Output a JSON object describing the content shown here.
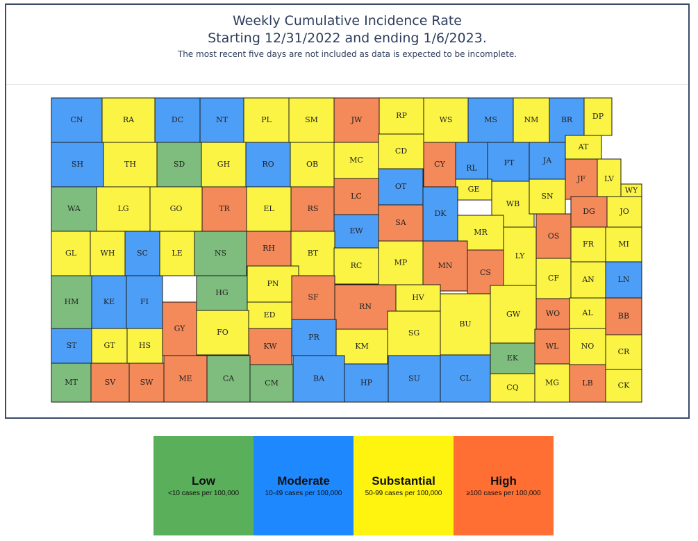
{
  "title": {
    "line1": "Weekly Cumulative Incidence Rate",
    "line2": "Starting 12/31/2022 and ending 1/6/2023.",
    "note": "The most recent five days are not included as data is expected to be incomplete."
  },
  "colors": {
    "low": "#7ebd7e",
    "moderate": "#4d9ef7",
    "substantial": "#fbf444",
    "high": "#f4895a",
    "frame": "#3a4a66"
  },
  "legend": [
    {
      "level": "low",
      "label": "Low",
      "range": "<10 cases per 100,000",
      "color": "#5aaf5a"
    },
    {
      "level": "moderate",
      "label": "Moderate",
      "range": "10-49 cases per 100,000",
      "color": "#1e88ff"
    },
    {
      "level": "substantial",
      "label": "Substantial",
      "range": "50-99 cases per 100,000",
      "color": "#fff40f"
    },
    {
      "level": "high",
      "label": "High",
      "range": "≥100 cases per 100,000",
      "color": "#ff6e33"
    }
  ],
  "counties": [
    {
      "code": "CN",
      "level": "moderate"
    },
    {
      "code": "RA",
      "level": "substantial"
    },
    {
      "code": "DC",
      "level": "moderate"
    },
    {
      "code": "NT",
      "level": "moderate"
    },
    {
      "code": "PL",
      "level": "substantial"
    },
    {
      "code": "SM",
      "level": "substantial"
    },
    {
      "code": "JW",
      "level": "high"
    },
    {
      "code": "RP",
      "level": "substantial"
    },
    {
      "code": "WS",
      "level": "substantial"
    },
    {
      "code": "MS",
      "level": "moderate"
    },
    {
      "code": "NM",
      "level": "substantial"
    },
    {
      "code": "BR",
      "level": "moderate"
    },
    {
      "code": "DP",
      "level": "substantial"
    },
    {
      "code": "SH",
      "level": "moderate"
    },
    {
      "code": "TH",
      "level": "substantial"
    },
    {
      "code": "SD",
      "level": "low"
    },
    {
      "code": "GH",
      "level": "substantial"
    },
    {
      "code": "RO",
      "level": "moderate"
    },
    {
      "code": "OB",
      "level": "substantial"
    },
    {
      "code": "MC",
      "level": "substantial"
    },
    {
      "code": "CD",
      "level": "substantial"
    },
    {
      "code": "CY",
      "level": "high"
    },
    {
      "code": "RL",
      "level": "moderate"
    },
    {
      "code": "PT",
      "level": "moderate"
    },
    {
      "code": "JA",
      "level": "moderate"
    },
    {
      "code": "AT",
      "level": "substantial"
    },
    {
      "code": "JF",
      "level": "high"
    },
    {
      "code": "LV",
      "level": "substantial"
    },
    {
      "code": "WY",
      "level": "substantial"
    },
    {
      "code": "WA",
      "level": "low"
    },
    {
      "code": "LG",
      "level": "substantial"
    },
    {
      "code": "GO",
      "level": "substantial"
    },
    {
      "code": "TR",
      "level": "high"
    },
    {
      "code": "EL",
      "level": "substantial"
    },
    {
      "code": "RS",
      "level": "high"
    },
    {
      "code": "LC",
      "level": "high"
    },
    {
      "code": "OT",
      "level": "moderate"
    },
    {
      "code": "GE",
      "level": "substantial"
    },
    {
      "code": "WB",
      "level": "substantial"
    },
    {
      "code": "SN",
      "level": "substantial"
    },
    {
      "code": "DG",
      "level": "high"
    },
    {
      "code": "JO",
      "level": "substantial"
    },
    {
      "code": "SA",
      "level": "high"
    },
    {
      "code": "DK",
      "level": "moderate"
    },
    {
      "code": "EW",
      "level": "moderate"
    },
    {
      "code": "MR",
      "level": "substantial"
    },
    {
      "code": "OS",
      "level": "high"
    },
    {
      "code": "GL",
      "level": "substantial"
    },
    {
      "code": "WH",
      "level": "substantial"
    },
    {
      "code": "SC",
      "level": "moderate"
    },
    {
      "code": "LE",
      "level": "substantial"
    },
    {
      "code": "NS",
      "level": "low"
    },
    {
      "code": "RH",
      "level": "high"
    },
    {
      "code": "BT",
      "level": "substantial"
    },
    {
      "code": "RC",
      "level": "substantial"
    },
    {
      "code": "MP",
      "level": "substantial"
    },
    {
      "code": "MN",
      "level": "high"
    },
    {
      "code": "CS",
      "level": "high"
    },
    {
      "code": "LY",
      "level": "substantial"
    },
    {
      "code": "FR",
      "level": "substantial"
    },
    {
      "code": "MI",
      "level": "substantial"
    },
    {
      "code": "HM",
      "level": "low"
    },
    {
      "code": "KE",
      "level": "moderate"
    },
    {
      "code": "FI",
      "level": "moderate"
    },
    {
      "code": "HG",
      "level": "low"
    },
    {
      "code": "PN",
      "level": "substantial"
    },
    {
      "code": "SF",
      "level": "high"
    },
    {
      "code": "RN",
      "level": "high"
    },
    {
      "code": "HV",
      "level": "substantial"
    },
    {
      "code": "BU",
      "level": "substantial"
    },
    {
      "code": "GW",
      "level": "substantial"
    },
    {
      "code": "CF",
      "level": "substantial"
    },
    {
      "code": "AN",
      "level": "substantial"
    },
    {
      "code": "LN",
      "level": "moderate"
    },
    {
      "code": "GY",
      "level": "high"
    },
    {
      "code": "ED",
      "level": "substantial"
    },
    {
      "code": "WO",
      "level": "high"
    },
    {
      "code": "AL",
      "level": "substantial"
    },
    {
      "code": "BB",
      "level": "high"
    },
    {
      "code": "ST",
      "level": "moderate"
    },
    {
      "code": "GT",
      "level": "substantial"
    },
    {
      "code": "HS",
      "level": "substantial"
    },
    {
      "code": "FO",
      "level": "substantial"
    },
    {
      "code": "KW",
      "level": "high"
    },
    {
      "code": "PR",
      "level": "moderate"
    },
    {
      "code": "KM",
      "level": "substantial"
    },
    {
      "code": "SG",
      "level": "substantial"
    },
    {
      "code": "EK",
      "level": "low"
    },
    {
      "code": "WL",
      "level": "high"
    },
    {
      "code": "NO",
      "level": "substantial"
    },
    {
      "code": "CR",
      "level": "substantial"
    },
    {
      "code": "MT",
      "level": "low"
    },
    {
      "code": "SV",
      "level": "high"
    },
    {
      "code": "SW",
      "level": "high"
    },
    {
      "code": "ME",
      "level": "high"
    },
    {
      "code": "CA",
      "level": "low"
    },
    {
      "code": "CM",
      "level": "low"
    },
    {
      "code": "BA",
      "level": "moderate"
    },
    {
      "code": "HP",
      "level": "moderate"
    },
    {
      "code": "SU",
      "level": "moderate"
    },
    {
      "code": "CL",
      "level": "moderate"
    },
    {
      "code": "CQ",
      "level": "substantial"
    },
    {
      "code": "MG",
      "level": "substantial"
    },
    {
      "code": "LB",
      "level": "high"
    },
    {
      "code": "CK",
      "level": "substantial"
    }
  ]
}
